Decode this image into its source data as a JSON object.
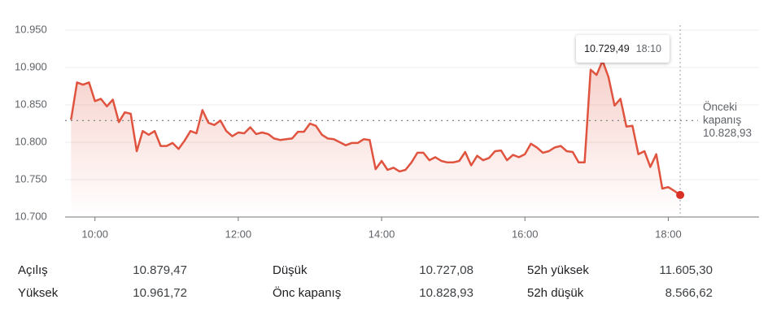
{
  "chart_data": {
    "type": "line",
    "color": "#e0533f",
    "x": [
      "09:40",
      "09:45",
      "09:50",
      "09:55",
      "10:00",
      "10:05",
      "10:10",
      "10:15",
      "10:20",
      "10:25",
      "10:30",
      "10:35",
      "10:40",
      "10:45",
      "10:50",
      "10:55",
      "11:00",
      "11:05",
      "11:10",
      "11:15",
      "11:20",
      "11:25",
      "11:30",
      "11:35",
      "11:40",
      "11:45",
      "11:50",
      "11:55",
      "12:00",
      "12:05",
      "12:10",
      "12:15",
      "12:20",
      "12:25",
      "12:30",
      "12:35",
      "12:40",
      "12:45",
      "12:50",
      "12:55",
      "13:00",
      "13:05",
      "13:10",
      "13:15",
      "13:20",
      "13:25",
      "13:30",
      "13:35",
      "13:40",
      "13:45",
      "13:50",
      "13:55",
      "14:00",
      "14:05",
      "14:10",
      "14:15",
      "14:20",
      "14:25",
      "14:30",
      "14:35",
      "14:40",
      "14:45",
      "14:50",
      "14:55",
      "15:00",
      "15:05",
      "15:10",
      "15:15",
      "15:20",
      "15:25",
      "15:30",
      "15:35",
      "15:40",
      "15:45",
      "15:50",
      "15:55",
      "16:00",
      "16:05",
      "16:10",
      "16:15",
      "16:20",
      "16:25",
      "16:30",
      "16:35",
      "16:40",
      "16:45",
      "16:50",
      "16:55",
      "17:00",
      "17:05",
      "17:10",
      "17:15",
      "17:20",
      "17:25",
      "17:30",
      "17:35",
      "17:40",
      "17:45",
      "17:50",
      "17:55",
      "18:00",
      "18:05",
      "18:10"
    ],
    "values": [
      10830,
      10880,
      10877,
      10880,
      10855,
      10858,
      10848,
      10857,
      10827,
      10840,
      10838,
      10788,
      10815,
      10810,
      10815,
      10795,
      10795,
      10799,
      10791,
      10802,
      10815,
      10812,
      10843,
      10826,
      10823,
      10829,
      10815,
      10808,
      10813,
      10812,
      10820,
      10811,
      10813,
      10811,
      10805,
      10803,
      10804,
      10805,
      10814,
      10814,
      10825,
      10822,
      10810,
      10805,
      10804,
      10800,
      10796,
      10799,
      10799,
      10804,
      10803,
      10764,
      10775,
      10763,
      10766,
      10761,
      10763,
      10773,
      10786,
      10786,
      10776,
      10780,
      10775,
      10773,
      10773,
      10775,
      10787,
      10769,
      10782,
      10776,
      10779,
      10788,
      10789,
      10776,
      10783,
      10780,
      10784,
      10798,
      10793,
      10786,
      10788,
      10793,
      10795,
      10788,
      10787,
      10773,
      10773,
      10897,
      10890,
      10909,
      10887,
      10849,
      10858,
      10821,
      10822,
      10784,
      10788,
      10767,
      10784,
      10738,
      10740,
      10735,
      10729.49
    ],
    "xlim": [
      "09:35",
      "19:16"
    ],
    "xticks": [
      "10:00",
      "12:00",
      "14:00",
      "16:00",
      "18:00"
    ],
    "ylim": [
      10700,
      10950
    ],
    "yticks": [
      {
        "value": 10700,
        "label": "10.700"
      },
      {
        "value": 10750,
        "label": "10.750"
      },
      {
        "value": 10800,
        "label": "10.800"
      },
      {
        "value": 10850,
        "label": "10.850"
      },
      {
        "value": 10900,
        "label": "10.900"
      },
      {
        "value": 10950,
        "label": "10.950"
      }
    ],
    "grid": true,
    "previous_close": {
      "label": "Önceki kapanış",
      "value": 10828.93,
      "value_label": "10.828,93"
    },
    "tooltip": {
      "value": 10729.49,
      "label": "10.729,49",
      "time": "18:10"
    }
  },
  "stats": [
    {
      "label": "Açılış",
      "value": "10.879,47"
    },
    {
      "label": "Yüksek",
      "value": "10.961,72"
    },
    {
      "label": "Düşük",
      "value": "10.727,08"
    },
    {
      "label": "Önc kapanış",
      "value": "10.828,93"
    },
    {
      "label": "52h yüksek",
      "value": "11.605,30"
    },
    {
      "label": "52h düşük",
      "value": "8.566,62"
    }
  ]
}
